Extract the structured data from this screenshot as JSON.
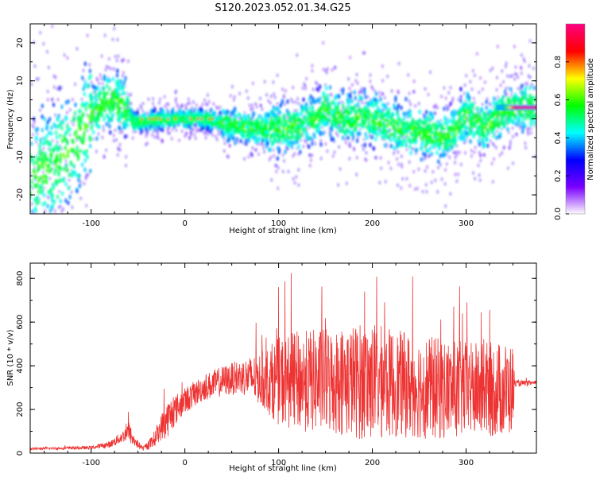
{
  "title": "S120.2023.052.01.34.G25",
  "chart_data": [
    {
      "type": "heatmap",
      "xlabel": "Height of straight line (km)",
      "ylabel": "Frequency (Hz)",
      "xlim": [
        -165,
        375
      ],
      "ylim": [
        -25,
        25
      ],
      "xticks": [
        "-100",
        "0",
        "100",
        "200",
        "300"
      ],
      "xtick_values": [
        -100,
        0,
        100,
        200,
        300
      ],
      "yticks": [
        "-20",
        "-10",
        "0",
        "10",
        "20"
      ],
      "ytick_values": [
        -20,
        -10,
        0,
        10,
        20
      ],
      "colorbar": {
        "label": "Normalized spectral amplitude",
        "range": [
          0,
          1
        ],
        "ticks": [
          "0.0",
          "0.2",
          "0.4",
          "0.6",
          "0.8"
        ],
        "tick_values": [
          0.0,
          0.2,
          0.4,
          0.6,
          0.8
        ],
        "colors": [
          "#ffffff",
          "#7b00ff",
          "#0000ff",
          "#00ffff",
          "#00ff00",
          "#ffff00",
          "#ff0000",
          "#ff0080"
        ]
      },
      "ridge": {
        "x": [
          -165,
          -140,
          -120,
          -100,
          -85,
          -75,
          -65,
          -60,
          -55,
          -40,
          -20,
          0,
          20,
          40,
          60,
          80,
          100,
          120,
          140,
          150,
          160,
          180,
          190,
          200,
          210,
          220,
          240,
          260,
          280,
          300,
          320,
          335,
          345,
          360,
          375
        ],
        "freq": [
          -15,
          -12,
          -8,
          1,
          4,
          5,
          3,
          2,
          -1,
          -0.5,
          0,
          0,
          0,
          -1,
          -2,
          -2.5,
          -3,
          -2,
          0,
          3,
          1,
          0,
          1,
          0,
          -1,
          -2,
          -3,
          -4,
          -5,
          1,
          -2,
          1,
          3,
          3,
          3
        ]
      },
      "peak_segment": {
        "x_start": -50,
        "x_end": 30,
        "freq": 0
      },
      "tone_segment": {
        "x_start": 340,
        "x_end": 375,
        "freq": 3
      }
    },
    {
      "type": "line",
      "series_color": "#ee3333",
      "xlabel": "Height of straight line (km)",
      "ylabel": "SNR (10 * v/v)",
      "xlim": [
        -165,
        375
      ],
      "ylim": [
        0,
        870
      ],
      "xticks": [
        "-100",
        "0",
        "100",
        "200",
        "300"
      ],
      "xtick_values": [
        -100,
        0,
        100,
        200,
        300
      ],
      "yticks": [
        "0",
        "200",
        "400",
        "600",
        "800"
      ],
      "ytick_values": [
        0,
        200,
        400,
        600,
        800
      ],
      "envelope": {
        "x": [
          -165,
          -100,
          -80,
          -65,
          -60,
          -55,
          -45,
          -35,
          -25,
          -20,
          -10,
          0,
          20,
          40,
          60,
          80,
          100,
          120,
          140,
          160,
          180,
          195,
          200,
          220,
          240,
          260,
          280,
          300,
          320,
          340,
          350,
          352,
          375
        ],
        "mean": [
          20,
          25,
          40,
          80,
          100,
          60,
          20,
          50,
          120,
          150,
          200,
          240,
          300,
          330,
          350,
          340,
          330,
          330,
          330,
          330,
          330,
          330,
          330,
          320,
          310,
          300,
          290,
          290,
          290,
          290,
          290,
          320,
          320
        ],
        "spread": [
          5,
          8,
          15,
          30,
          50,
          30,
          10,
          30,
          60,
          90,
          70,
          60,
          60,
          70,
          80,
          120,
          200,
          230,
          240,
          250,
          260,
          280,
          270,
          250,
          240,
          240,
          230,
          220,
          220,
          220,
          210,
          15,
          10
        ]
      }
    }
  ]
}
